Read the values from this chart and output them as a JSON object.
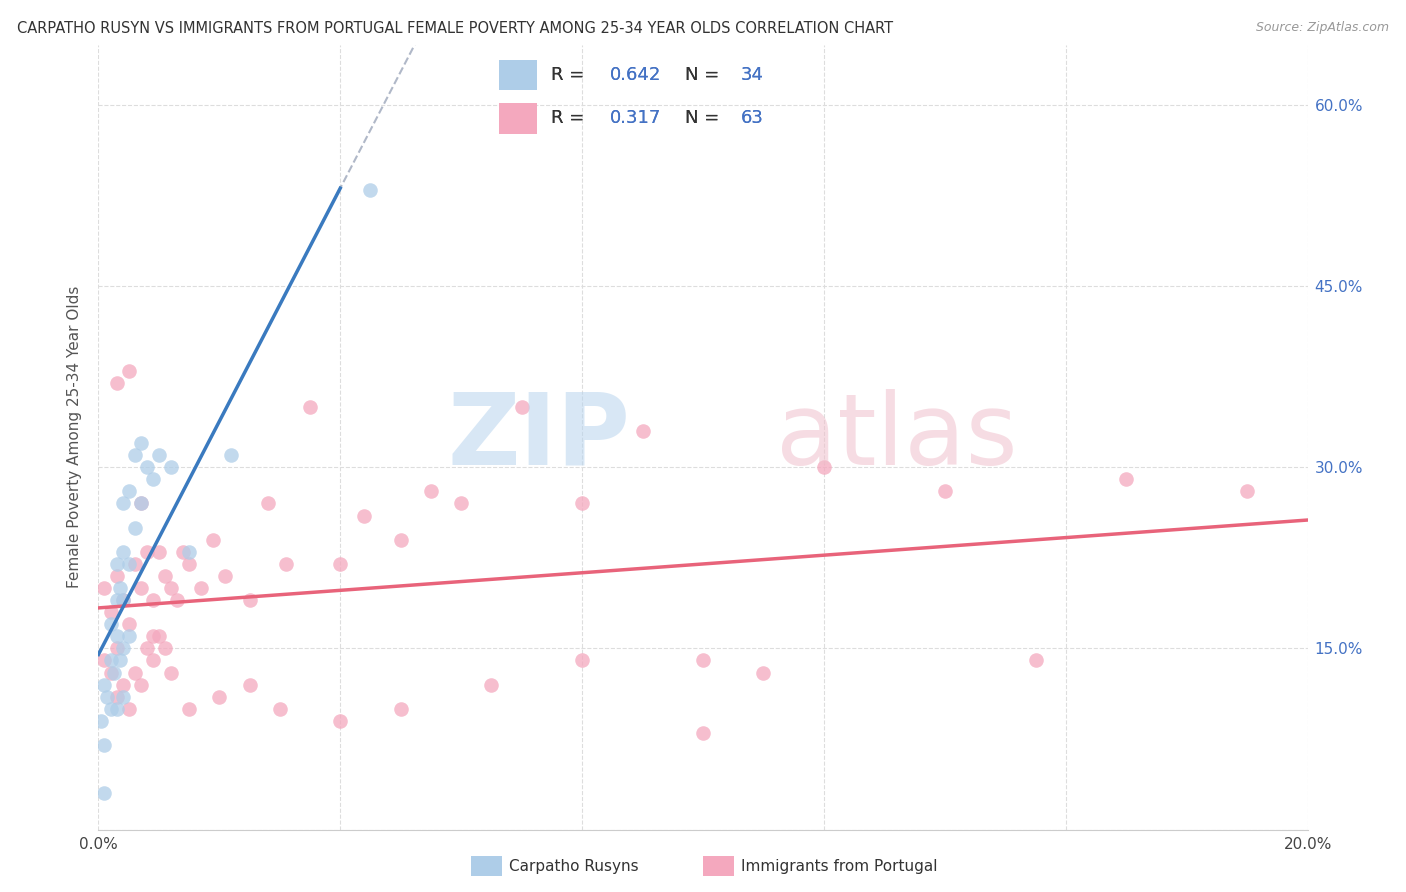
{
  "title": "CARPATHO RUSYN VS IMMIGRANTS FROM PORTUGAL FEMALE POVERTY AMONG 25-34 YEAR OLDS CORRELATION CHART",
  "source": "Source: ZipAtlas.com",
  "ylabel": "Female Poverty Among 25-34 Year Olds",
  "xlim": [
    0.0,
    0.2
  ],
  "ylim": [
    0.0,
    0.65
  ],
  "background_color": "#ffffff",
  "grid_color": "#dddddd",
  "legend_R1": "0.642",
  "legend_N1": "34",
  "legend_R2": "0.317",
  "legend_N2": "63",
  "color_blue": "#aecde8",
  "color_pink": "#f4a8be",
  "color_blue_line": "#3a7abf",
  "color_pink_line": "#e8637a",
  "color_text_blue": "#4472c4",
  "color_text_dark": "#333333",
  "carpatho_x": [
    0.0005,
    0.001,
    0.001,
    0.0015,
    0.002,
    0.002,
    0.002,
    0.0025,
    0.003,
    0.003,
    0.003,
    0.003,
    0.0035,
    0.0035,
    0.004,
    0.004,
    0.004,
    0.004,
    0.004,
    0.005,
    0.005,
    0.005,
    0.006,
    0.006,
    0.007,
    0.007,
    0.008,
    0.009,
    0.01,
    0.012,
    0.015,
    0.022,
    0.045,
    0.001
  ],
  "carpatho_y": [
    0.09,
    0.07,
    0.12,
    0.11,
    0.1,
    0.14,
    0.17,
    0.13,
    0.1,
    0.16,
    0.19,
    0.22,
    0.14,
    0.2,
    0.11,
    0.15,
    0.19,
    0.23,
    0.27,
    0.16,
    0.22,
    0.28,
    0.25,
    0.31,
    0.27,
    0.32,
    0.3,
    0.29,
    0.31,
    0.3,
    0.23,
    0.31,
    0.53,
    0.03
  ],
  "portugal_x": [
    0.001,
    0.001,
    0.002,
    0.002,
    0.003,
    0.003,
    0.003,
    0.004,
    0.004,
    0.005,
    0.005,
    0.006,
    0.006,
    0.007,
    0.007,
    0.008,
    0.008,
    0.009,
    0.009,
    0.01,
    0.01,
    0.011,
    0.011,
    0.012,
    0.013,
    0.014,
    0.015,
    0.017,
    0.019,
    0.021,
    0.025,
    0.028,
    0.031,
    0.035,
    0.04,
    0.044,
    0.05,
    0.055,
    0.06,
    0.07,
    0.08,
    0.09,
    0.1,
    0.11,
    0.12,
    0.14,
    0.155,
    0.17,
    0.19,
    0.003,
    0.005,
    0.007,
    0.009,
    0.012,
    0.015,
    0.02,
    0.025,
    0.03,
    0.04,
    0.05,
    0.065,
    0.08,
    0.1
  ],
  "portugal_y": [
    0.14,
    0.2,
    0.13,
    0.18,
    0.11,
    0.15,
    0.21,
    0.12,
    0.19,
    0.1,
    0.17,
    0.13,
    0.22,
    0.12,
    0.2,
    0.15,
    0.23,
    0.14,
    0.19,
    0.16,
    0.23,
    0.15,
    0.21,
    0.2,
    0.19,
    0.23,
    0.22,
    0.2,
    0.24,
    0.21,
    0.19,
    0.27,
    0.22,
    0.35,
    0.22,
    0.26,
    0.24,
    0.28,
    0.27,
    0.35,
    0.27,
    0.33,
    0.14,
    0.13,
    0.3,
    0.28,
    0.14,
    0.29,
    0.28,
    0.37,
    0.38,
    0.27,
    0.16,
    0.13,
    0.1,
    0.11,
    0.12,
    0.1,
    0.09,
    0.1,
    0.12,
    0.14,
    0.08
  ]
}
